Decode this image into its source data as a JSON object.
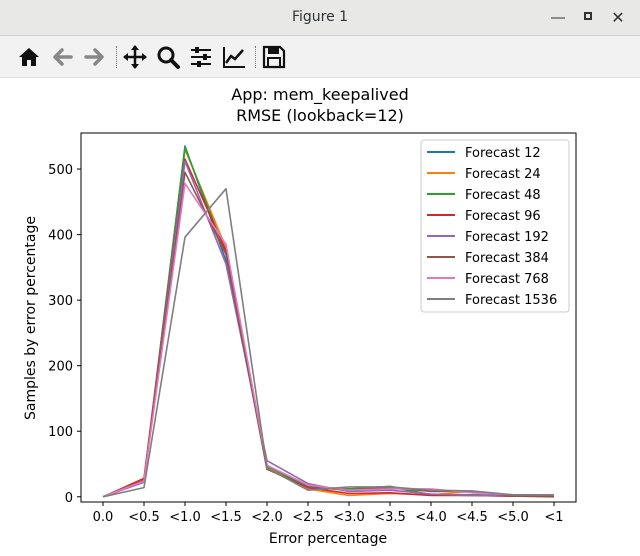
{
  "window": {
    "title": "Figure 1"
  },
  "toolbar": {
    "items": [
      {
        "icon": "home-icon"
      },
      {
        "icon": "back-arrow-icon"
      },
      {
        "icon": "forward-arrow-icon"
      },
      {
        "icon": "pan-icon"
      },
      {
        "icon": "zoom-icon"
      },
      {
        "icon": "configure-subplots-icon"
      },
      {
        "icon": "edit-axis-icon"
      },
      {
        "icon": "save-icon"
      }
    ]
  },
  "chart_data": {
    "type": "line",
    "title": "App: mem_keepalived",
    "subtitle": "RMSE (lookback=12)",
    "xlabel": "Error percentage",
    "ylabel": "Samples by error percentage",
    "categories": [
      "0.0",
      "<0.5",
      "<1.0",
      "<1.5",
      "<2.0",
      "<2.5",
      "<3.0",
      "<3.5",
      "<4.0",
      "<4.5",
      "<5.0",
      "<1"
    ],
    "ylim": [
      -8,
      555
    ],
    "yticks": [
      0,
      100,
      200,
      300,
      400,
      500
    ],
    "legend_position": "top-right",
    "grid": false,
    "series": [
      {
        "name": "Forecast 12",
        "color": "#1f77b4",
        "values": [
          0,
          25,
          535,
          360,
          48,
          15,
          12,
          15,
          3,
          2,
          1,
          2
        ]
      },
      {
        "name": "Forecast 24",
        "color": "#ff7f0e",
        "values": [
          0,
          26,
          530,
          380,
          45,
          12,
          2,
          5,
          3,
          8,
          1,
          2
        ]
      },
      {
        "name": "Forecast 48",
        "color": "#2ca02c",
        "values": [
          0,
          24,
          533,
          370,
          47,
          15,
          12,
          16,
          3,
          3,
          2,
          1
        ]
      },
      {
        "name": "Forecast 96",
        "color": "#d62728",
        "values": [
          0,
          28,
          515,
          375,
          42,
          14,
          5,
          6,
          2,
          2,
          1,
          1
        ]
      },
      {
        "name": "Forecast 192",
        "color": "#9467bd",
        "values": [
          0,
          22,
          512,
          355,
          55,
          20,
          8,
          10,
          4,
          2,
          2,
          3
        ]
      },
      {
        "name": "Forecast 384",
        "color": "#8c564b",
        "values": [
          0,
          25,
          495,
          370,
          42,
          15,
          10,
          14,
          8,
          8,
          1,
          0
        ]
      },
      {
        "name": "Forecast 768",
        "color": "#e377c2",
        "values": [
          0,
          24,
          478,
          385,
          48,
          18,
          10,
          12,
          12,
          6,
          3,
          3
        ]
      },
      {
        "name": "Forecast 1536",
        "color": "#7f7f7f",
        "values": [
          0,
          14,
          396,
          470,
          44,
          10,
          15,
          15,
          10,
          9,
          3,
          3
        ]
      }
    ]
  }
}
